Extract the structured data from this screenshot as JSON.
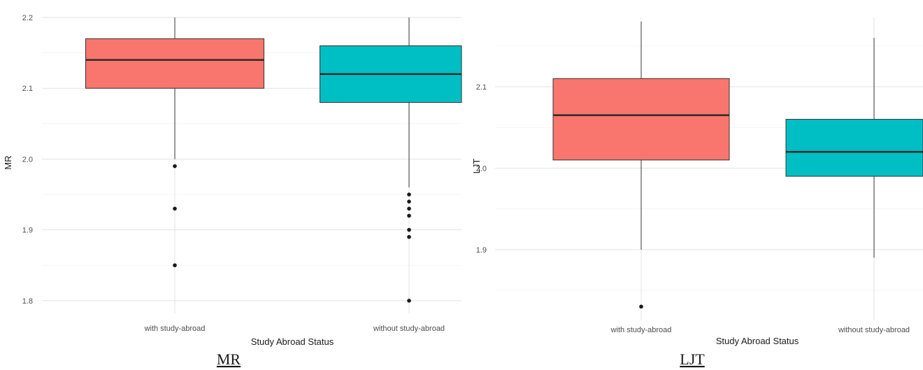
{
  "chart_data": [
    {
      "type": "box",
      "caption": "MR",
      "xlabel": "Study Abroad Status",
      "ylabel": "MR",
      "ylim": [
        1.79,
        2.2
      ],
      "yticks": [
        1.8,
        1.9,
        2.0,
        2.1,
        2.2
      ],
      "ytick_labels": [
        "1.8",
        "1.9",
        "2.0",
        "2.1",
        "2.2"
      ],
      "categories": [
        "with study-abroad",
        "without study-abroad"
      ],
      "colors": [
        "#F8766D",
        "#00BFC4"
      ],
      "boxes": [
        {
          "whisker_low": 2.0,
          "q1": 2.1,
          "median": 2.14,
          "q3": 2.17,
          "whisker_high": 2.2,
          "outliers": [
            1.99,
            1.93,
            1.85
          ]
        },
        {
          "whisker_low": 1.96,
          "q1": 2.08,
          "median": 2.12,
          "q3": 2.16,
          "whisker_high": 2.2,
          "outliers": [
            1.95,
            1.94,
            1.93,
            1.92,
            1.9,
            1.89,
            1.8
          ]
        }
      ],
      "grid": true
    },
    {
      "type": "box",
      "caption": "LJT",
      "xlabel": "Study Abroad Status",
      "ylabel": "LJT",
      "ylim": [
        1.82,
        2.185
      ],
      "yticks": [
        1.9,
        2.0,
        2.1
      ],
      "ytick_labels": [
        "1.9",
        "2.0",
        "2.1"
      ],
      "categories": [
        "with study-abroad",
        "without study-abroad"
      ],
      "colors": [
        "#F8766D",
        "#00BFC4"
      ],
      "boxes": [
        {
          "whisker_low": 1.9,
          "q1": 2.01,
          "median": 2.065,
          "q3": 2.11,
          "whisker_high": 2.18,
          "outliers": [
            1.83
          ]
        },
        {
          "whisker_low": 1.89,
          "q1": 1.99,
          "median": 2.02,
          "q3": 2.06,
          "whisker_high": 2.16,
          "outliers": []
        }
      ],
      "grid": true
    }
  ]
}
